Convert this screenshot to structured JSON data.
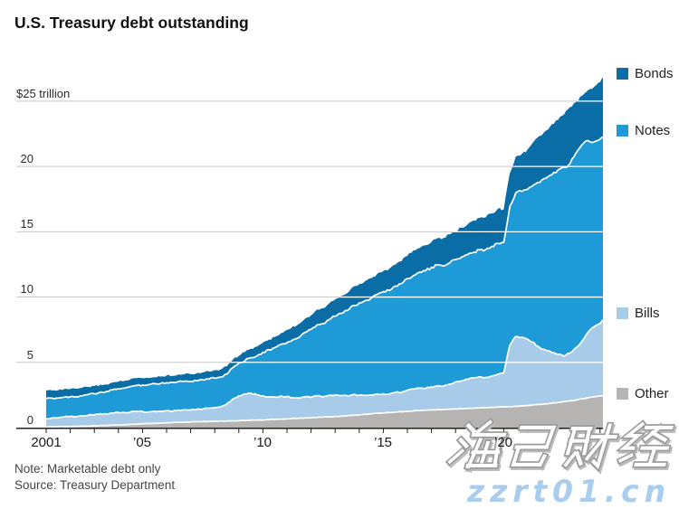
{
  "header": {
    "title": "U.S. Treasury debt outstanding"
  },
  "footer": {
    "note": "Note: Marketable debt only",
    "source": "Source: Treasury Department"
  },
  "watermark": {
    "brand": "海马财经",
    "site": "zzrt01.cn",
    "site_color": "#a9cdee"
  },
  "chart_data": {
    "type": "area",
    "stacked": true,
    "title": "U.S. Treasury debt outstanding",
    "ylabel": "$ trillion",
    "x_start": 2001.0,
    "x_step": 0.25,
    "ylim": [
      0,
      25
    ],
    "grid_values": [
      5,
      10,
      15,
      20,
      25
    ],
    "y_tick_labels": [
      "$25 trillion",
      "20",
      "15",
      "10",
      "5",
      "0"
    ],
    "x_tick_labels": [
      "2001",
      "’05",
      "’10",
      "’15",
      "’20"
    ],
    "x_tick_years": [
      2001,
      2005,
      2010,
      2015,
      2020
    ],
    "legend_position": "right",
    "series": [
      {
        "name": "Other",
        "color": "#b5b4b2",
        "values": [
          0.05,
          0.06,
          0.07,
          0.08,
          0.09,
          0.1,
          0.11,
          0.12,
          0.13,
          0.15,
          0.17,
          0.19,
          0.21,
          0.23,
          0.25,
          0.27,
          0.29,
          0.31,
          0.32,
          0.34,
          0.36,
          0.38,
          0.4,
          0.41,
          0.43,
          0.45,
          0.46,
          0.47,
          0.48,
          0.5,
          0.51,
          0.52,
          0.53,
          0.55,
          0.57,
          0.58,
          0.59,
          0.61,
          0.63,
          0.65,
          0.67,
          0.7,
          0.72,
          0.74,
          0.76,
          0.79,
          0.81,
          0.83,
          0.85,
          0.88,
          0.91,
          0.94,
          0.98,
          1.02,
          1.06,
          1.1,
          1.13,
          1.16,
          1.19,
          1.22,
          1.25,
          1.28,
          1.31,
          1.33,
          1.35,
          1.37,
          1.39,
          1.41,
          1.43,
          1.45,
          1.47,
          1.49,
          1.51,
          1.53,
          1.55,
          1.57,
          1.59,
          1.61,
          1.63,
          1.66,
          1.7,
          1.74,
          1.78,
          1.82,
          1.87,
          1.93,
          1.99,
          2.05,
          2.12,
          2.2,
          2.28,
          2.36,
          2.42,
          2.48
        ]
      },
      {
        "name": "Bills",
        "color": "#a7cbe8",
        "values": [
          0.62,
          0.67,
          0.7,
          0.74,
          0.78,
          0.74,
          0.8,
          0.84,
          0.86,
          0.91,
          0.87,
          0.93,
          0.96,
          0.91,
          0.95,
          0.99,
          0.94,
          0.89,
          0.93,
          0.9,
          0.94,
          0.89,
          0.93,
          0.96,
          0.91,
          0.95,
          0.98,
          1.01,
          1.06,
          1.09,
          1.28,
          1.68,
          1.9,
          2.02,
          2.06,
          1.96,
          1.82,
          1.76,
          1.72,
          1.76,
          1.7,
          1.6,
          1.56,
          1.61,
          1.58,
          1.64,
          1.55,
          1.62,
          1.64,
          1.57,
          1.53,
          1.58,
          1.5,
          1.44,
          1.42,
          1.47,
          1.45,
          1.4,
          1.52,
          1.49,
          1.6,
          1.69,
          1.73,
          1.68,
          1.78,
          1.86,
          1.79,
          1.93,
          2.05,
          2.16,
          2.21,
          2.31,
          2.38,
          2.3,
          2.43,
          2.52,
          2.61,
          4.69,
          5.37,
          5.24,
          5.1,
          4.76,
          4.32,
          4.08,
          3.88,
          3.67,
          3.51,
          3.65,
          3.98,
          4.4,
          5.02,
          5.34,
          5.58,
          5.87
        ]
      },
      {
        "name": "Notes",
        "color": "#1e9ad6",
        "values": [
          1.55,
          1.52,
          1.5,
          1.52,
          1.5,
          1.53,
          1.55,
          1.58,
          1.6,
          1.64,
          1.7,
          1.76,
          1.82,
          1.88,
          1.93,
          1.99,
          2.03,
          2.08,
          2.11,
          2.15,
          2.16,
          2.19,
          2.2,
          2.21,
          2.21,
          2.22,
          2.23,
          2.25,
          2.27,
          2.29,
          2.33,
          2.4,
          2.48,
          2.58,
          2.72,
          2.98,
          3.35,
          3.57,
          3.77,
          3.93,
          4.15,
          4.42,
          4.63,
          4.92,
          5.15,
          5.42,
          5.58,
          5.82,
          6.05,
          6.32,
          6.53,
          6.82,
          7.05,
          7.28,
          7.43,
          7.67,
          7.8,
          7.98,
          8.13,
          8.33,
          8.55,
          8.72,
          8.83,
          9.02,
          9.1,
          9.22,
          9.23,
          9.32,
          9.35,
          9.47,
          9.53,
          9.67,
          9.7,
          9.82,
          9.88,
          10.02,
          10.0,
          10.6,
          11.0,
          11.2,
          11.5,
          12.1,
          12.7,
          13.2,
          13.65,
          14.1,
          14.4,
          14.5,
          14.9,
          15.1,
          14.7,
          14.2,
          14.1,
          14.05
        ]
      },
      {
        "name": "Bonds",
        "color": "#0b6da6",
        "values": [
          0.63,
          0.62,
          0.61,
          0.6,
          0.6,
          0.59,
          0.59,
          0.58,
          0.58,
          0.57,
          0.57,
          0.56,
          0.56,
          0.55,
          0.55,
          0.54,
          0.53,
          0.52,
          0.52,
          0.52,
          0.53,
          0.53,
          0.54,
          0.54,
          0.55,
          0.55,
          0.56,
          0.57,
          0.58,
          0.58,
          0.59,
          0.61,
          0.62,
          0.64,
          0.67,
          0.7,
          0.74,
          0.78,
          0.82,
          0.86,
          0.95,
          1.0,
          1.05,
          1.1,
          1.15,
          1.19,
          1.23,
          1.26,
          1.3,
          1.34,
          1.38,
          1.41,
          1.44,
          1.48,
          1.52,
          1.56,
          1.58,
          1.63,
          1.68,
          1.73,
          1.78,
          1.84,
          1.9,
          1.96,
          2.0,
          2.05,
          2.1,
          2.15,
          2.2,
          2.26,
          2.32,
          2.38,
          2.44,
          2.5,
          2.56,
          2.62,
          2.55,
          2.62,
          2.72,
          2.82,
          3.0,
          3.3,
          3.5,
          3.6,
          3.8,
          3.9,
          4.1,
          4.3,
          3.9,
          3.7,
          3.8,
          4.2,
          4.4,
          4.6
        ]
      }
    ]
  }
}
